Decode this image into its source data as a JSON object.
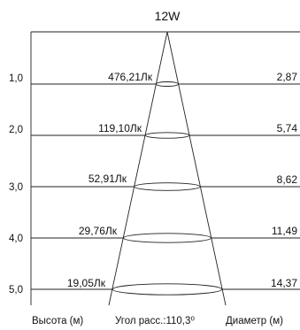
{
  "title": "12W",
  "rows": [
    {
      "height": "1,0",
      "lux": "476,21Лк",
      "diameter": "2,87"
    },
    {
      "height": "2,0",
      "lux": "119,10Лк",
      "diameter": "5,74"
    },
    {
      "height": "3,0",
      "lux": "52,91Лк",
      "diameter": "8,62"
    },
    {
      "height": "4,0",
      "lux": "29,76Лк",
      "diameter": "11,49"
    },
    {
      "height": "5,0",
      "lux": "19,05Лк",
      "diameter": "14,37"
    }
  ],
  "footer": {
    "height_label": "Высота (м)",
    "angle_label": "Угол расс.:110,3⁰",
    "diameter_label": "Диаметр (м)"
  }
}
